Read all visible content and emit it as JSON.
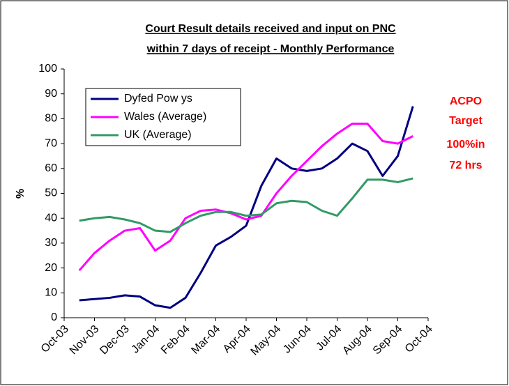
{
  "chart_data": {
    "type": "line",
    "title": [
      "Court Result details received and input on PNC",
      "within 7 days of receipt - Monthly Performance"
    ],
    "y_label": "%",
    "annotation": [
      "ACPO",
      "Target",
      "100%in",
      "72 hrs"
    ],
    "categories": [
      "Oct-03",
      null,
      "Nov-03",
      null,
      "Dec-03",
      null,
      "Jan-04",
      null,
      "Feb-04",
      null,
      "Mar-04",
      null,
      "Apr-04",
      null,
      "May-04",
      null,
      "Jun-04",
      null,
      "Jul-04",
      null,
      "Aug-04",
      null,
      "Sep-04",
      null,
      "Oct-04"
    ],
    "series": [
      {
        "name": "Dyfed Pow ys",
        "color": "#000080",
        "values": [
          null,
          7,
          7.5,
          8,
          9,
          8.5,
          5,
          4,
          8,
          18,
          29,
          32.5,
          37,
          53,
          64,
          60,
          59,
          60,
          64,
          70,
          67,
          57,
          65,
          85,
          null
        ]
      },
      {
        "name": "Wales (Average)",
        "color": "#ff00ff",
        "values": [
          null,
          19,
          26,
          31,
          35,
          36,
          27,
          31,
          40,
          43,
          43.5,
          42,
          39.5,
          41,
          50,
          57,
          63,
          69,
          74,
          78,
          78,
          71,
          70,
          73,
          null
        ]
      },
      {
        "name": "UK (Average)",
        "color": "#339966",
        "values": [
          null,
          39,
          40,
          40.5,
          39.5,
          38,
          35,
          34.5,
          38,
          41,
          42.5,
          42.5,
          41,
          41.5,
          46,
          47,
          46.5,
          43,
          41,
          48,
          55.5,
          55.5,
          54.5,
          56,
          null
        ]
      }
    ],
    "ylim": [
      0,
      100
    ],
    "yticks": [
      0,
      10,
      20,
      30,
      40,
      50,
      60,
      70,
      80,
      90,
      100
    ]
  }
}
